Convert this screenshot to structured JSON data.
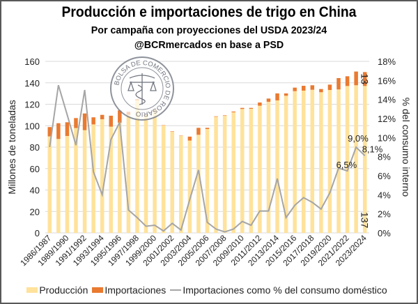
{
  "title": "Producción e importaciones de trigo en China",
  "subtitle": "Por campaña con proyecciones del USDA 2023/24",
  "subtitle2": "@BCRmercados en base a PSD",
  "logo_text": "BOLSA DE COMERCIO DE ROSARIO",
  "colors": {
    "production": "#FFE29B",
    "imports": "#E97A30",
    "line": "#A5A5A5"
  },
  "chart_data": {
    "type": "bar",
    "stacked": true,
    "categories": [
      "1986/1987",
      "1988/1989",
      "1989/1990",
      "1990/1991",
      "1991/1992",
      "1992/1993",
      "1993/1994",
      "1994/1995",
      "1995/1996",
      "1996/1997",
      "1997/1998",
      "1998/1999",
      "1999/2000",
      "2000/2001",
      "2001/2002",
      "2002/2003",
      "2003/2004",
      "2004/2005",
      "2005/2006",
      "2006/2007",
      "2007/2008",
      "2008/2009",
      "2009/2010",
      "2010/2011",
      "2011/2012",
      "2012/2013",
      "2013/2014",
      "2014/2015",
      "2015/2016",
      "2016/2017",
      "2017/2018",
      "2018/2019",
      "2019/2020",
      "2020/2021",
      "2021/2022",
      "2022/2023",
      "2023/2024"
    ],
    "series": [
      {
        "name": "Producción",
        "axis": "left",
        "values": [
          90.0,
          87.6,
          90.4,
          97.8,
          95.8,
          101.2,
          106.0,
          99.1,
          102.8,
          110.1,
          123.8,
          109.9,
          114.3,
          100.2,
          94.3,
          90.4,
          86.1,
          91.5,
          96.9,
          108.4,
          109.3,
          112.5,
          115.6,
          115.8,
          118.6,
          122.3,
          123.6,
          127.9,
          132.2,
          132.7,
          133.5,
          131.2,
          133.3,
          133.8,
          137.0,
          137.7,
          137
        ]
      },
      {
        "name": "Importaciones",
        "axis": "left",
        "values": [
          8.7,
          14.7,
          12.8,
          9.3,
          15.6,
          6.6,
          4.1,
          10.2,
          11.5,
          2.9,
          0.9,
          0.3,
          0.5,
          0.3,
          0.4,
          0.3,
          3.7,
          6.5,
          1.1,
          0.4,
          0.4,
          0.7,
          1.0,
          0.8,
          3.0,
          3.0,
          6.5,
          2.2,
          3.3,
          4.5,
          4.2,
          3.0,
          5.0,
          10.6,
          9.1,
          12.8,
          13
        ]
      },
      {
        "name": "Importaciones como % del consumo doméstico",
        "type": "line",
        "axis": "right",
        "values": [
          9.0,
          15.5,
          12.4,
          9.2,
          15.0,
          6.4,
          4.0,
          9.8,
          11.6,
          2.4,
          1.6,
          0.7,
          0.8,
          0.2,
          1.0,
          0.3,
          3.5,
          6.6,
          1.1,
          0.4,
          0.1,
          0.4,
          1.2,
          0.8,
          2.3,
          2.3,
          5.7,
          1.6,
          2.9,
          3.7,
          3.2,
          2.5,
          4.2,
          6.8,
          6.5,
          9.0,
          8.1
        ]
      }
    ],
    "ylabel": "Millones de toneladas",
    "ylabel_right": "% del consumo interno",
    "ylim": [
      0,
      160
    ],
    "ylim_right": [
      0,
      18
    ],
    "yticks": [
      "0",
      "20",
      "40",
      "60",
      "80",
      "100",
      "120",
      "140",
      "160"
    ],
    "yticks_right": [
      "0%",
      "2%",
      "4%",
      "6%",
      "8%",
      "10%",
      "12%",
      "14%",
      "16%",
      "18%"
    ],
    "xtick_labels": [
      "1986/1987",
      "1989/1990",
      "1991/1992",
      "1993/1994",
      "1995/1996",
      "1997/1998",
      "1999/2000",
      "2001/2002",
      "2003/2004",
      "2005/2006",
      "2007/2008",
      "2009/2010",
      "2011/2012",
      "2013/2014",
      "2015/2016",
      "2017/2018",
      "2019/2020",
      "2021/2022",
      "2023/2024"
    ],
    "annotations": [
      {
        "series": 2,
        "index": 34,
        "text": "6,5%"
      },
      {
        "series": 2,
        "index": 35,
        "text": "9,0%"
      },
      {
        "series": 2,
        "index": 36,
        "text": "8,1%"
      },
      {
        "series": 0,
        "index": 36,
        "text": "137"
      },
      {
        "series": 1,
        "index": 36,
        "text": "13"
      }
    ],
    "legend": [
      "Producción",
      "Importaciones",
      "Importaciones como % del consumo doméstico"
    ],
    "legend_position": "bottom",
    "grid": true
  }
}
